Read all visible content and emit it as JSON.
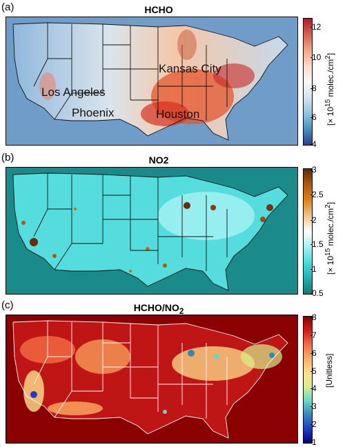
{
  "panels": [
    {
      "label": "(a)",
      "title": "HCHO",
      "colorbar": {
        "ticks": [
          "12",
          "10",
          "8",
          "6",
          "4"
        ],
        "unit_prefix": "[× 10",
        "unit_exp": "15",
        "unit_suffix": " molec./cm",
        "unit_exp2": "2",
        "unit_close": "]",
        "colors": [
          "#b2182b",
          "#d6604d",
          "#f4a582",
          "#fddbc7",
          "#f7f7f7",
          "#d1e5f0",
          "#92c5de",
          "#4393c3",
          "#2c3e8a"
        ]
      },
      "cities": [
        "Kansas City",
        "Los Angeles",
        "Phoenix",
        "Houston"
      ]
    },
    {
      "label": "(b)",
      "title": "NO2",
      "colorbar": {
        "ticks": [
          "3",
          "2.5",
          "2",
          "1.5",
          "1",
          "0.5"
        ],
        "unit_prefix": "[× 10",
        "unit_exp": "15",
        "unit_suffix": " molec./cm",
        "unit_exp2": "2",
        "unit_close": "]",
        "colors": [
          "#5a2d0c",
          "#b35806",
          "#e08214",
          "#f2c58a",
          "#ffffff",
          "#a6f0f0",
          "#40e0e0",
          "#1fb0b0",
          "#127a7a"
        ]
      }
    },
    {
      "label": "(c)",
      "title_main": "HCHO/NO",
      "title_sub": "2",
      "colorbar": {
        "ticks": [
          "8",
          "7",
          "6",
          "5",
          "4",
          "3",
          "2",
          "1"
        ],
        "unit": "[Unitless]",
        "colors": [
          "#8b0000",
          "#d7191c",
          "#f46d43",
          "#fdae61",
          "#fee08b",
          "#d9ef8b",
          "#66d9c0",
          "#3288bd",
          "#1e3cc8",
          "#000080"
        ]
      }
    }
  ]
}
